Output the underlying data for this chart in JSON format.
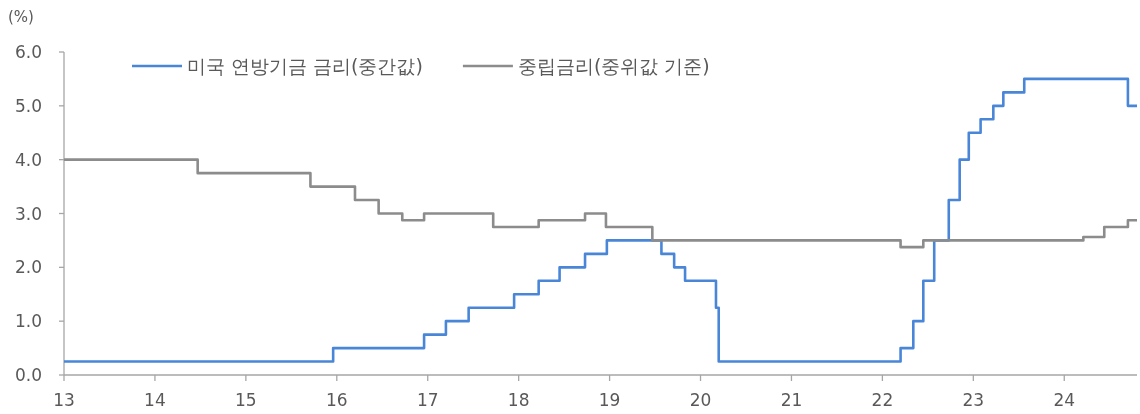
{
  "chart_data": {
    "type": "step",
    "ylabel": "(%)",
    "xlim": [
      13,
      24.8
    ],
    "xticks": [
      13,
      14,
      15,
      16,
      17,
      18,
      19,
      20,
      21,
      22,
      23,
      24
    ],
    "ylim": [
      0,
      6
    ],
    "yticks": [
      {
        "value": 0,
        "label": "0.0"
      },
      {
        "value": 1,
        "label": "1.0"
      },
      {
        "value": 2,
        "label": "2.0"
      },
      {
        "value": 3,
        "label": "3.0"
      },
      {
        "value": 4,
        "label": "4.0"
      },
      {
        "value": 5,
        "label": "5.0"
      },
      {
        "value": 6,
        "label": "6.0"
      }
    ],
    "grid": false,
    "legend": "top",
    "marker": "none",
    "line_style": "solid",
    "series": [
      {
        "name": "미국 연방기금 금리(중간값)",
        "color": "#4a86d8",
        "x": [
          13,
          15.96,
          16.96,
          17.2,
          17.45,
          17.95,
          18.22,
          18.45,
          18.73,
          18.97,
          19.57,
          19.71,
          19.83,
          20.17,
          20.2,
          22.2,
          22.34,
          22.45,
          22.57,
          22.73,
          22.85,
          22.95,
          23.08,
          23.22,
          23.33,
          23.56,
          24.7,
          24.8
        ],
        "values": [
          0.25,
          0.5,
          0.75,
          1.0,
          1.25,
          1.5,
          1.75,
          2.0,
          2.25,
          2.5,
          2.25,
          2.0,
          1.75,
          1.25,
          0.25,
          0.5,
          1.0,
          1.75,
          2.5,
          3.25,
          4.0,
          4.5,
          4.75,
          5.0,
          5.25,
          5.5,
          5.0,
          5.0
        ]
      },
      {
        "name": "중립금리(중위값 기준)",
        "color": "#8c8c8c",
        "x": [
          13,
          14.47,
          15.71,
          16.2,
          16.46,
          16.72,
          16.96,
          17.72,
          18.22,
          18.73,
          18.96,
          19.47,
          22.2,
          22.45,
          24.21,
          24.44,
          24.7,
          24.8
        ],
        "values": [
          4.0,
          3.75,
          3.5,
          3.25,
          3.0,
          2.875,
          3.0,
          2.75,
          2.875,
          3.0,
          2.75,
          2.5,
          2.375,
          2.5,
          2.5625,
          2.75,
          2.875,
          2.875
        ]
      }
    ]
  }
}
